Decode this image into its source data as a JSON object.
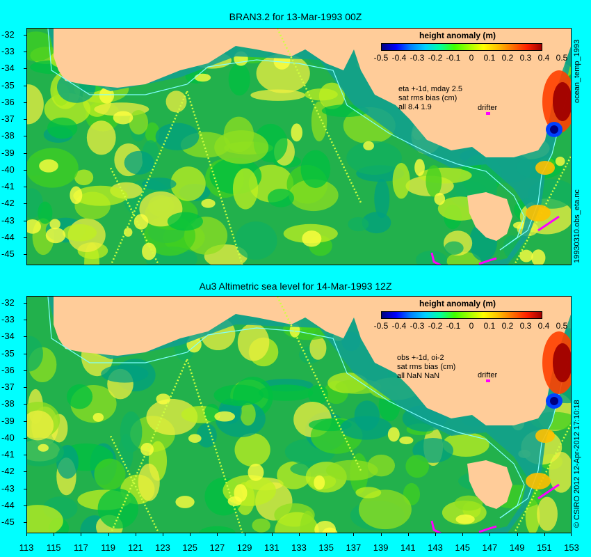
{
  "panels": [
    {
      "title": "BRAN3.2 for 13-Mar-1993 00Z",
      "legend_title": "height anomaly (m)",
      "info_lines": [
        "eta +-1d, mday 2.5",
        "sat rms bias (cm)",
        "all 8.4 1.9"
      ],
      "drifter_label": "drifter",
      "side_top": "ocean_temp_1993",
      "side_bottom": "19930310.obs_eta.nc"
    },
    {
      "title": "Au3 Altimetric sea level  for 14-Mar-1993 12Z",
      "legend_title": "height anomaly (m)",
      "info_lines": [
        "obs +-1d, oi-2",
        "sat rms bias (cm)",
        "all NaN NaN"
      ],
      "drifter_label": "drifter",
      "side_top": "",
      "side_bottom": "© CSIRO 2012  12-Apr-2012 17:10:18"
    }
  ],
  "colorbar_labels": [
    "-0.5",
    "-0.4",
    "-0.3",
    "-0.2",
    "-0.1",
    "0",
    "0.1",
    "0.2",
    "0.3",
    "0.4",
    "0.5"
  ],
  "y_labels": [
    "-32",
    "-33",
    "-34",
    "-35",
    "-36",
    "-37",
    "-38",
    "-39",
    "-40",
    "-41",
    "-42",
    "-43",
    "-44",
    "-45"
  ],
  "x_labels": [
    "113",
    "115",
    "117",
    "119",
    "121",
    "123",
    "125",
    "127",
    "129",
    "131",
    "133",
    "135",
    "137",
    "139",
    "141",
    "143",
    "145",
    "147",
    "149",
    "151",
    "153"
  ],
  "colors": {
    "background": "#00ffff",
    "land": "#ffcc99",
    "ocean_base": "#22b14c",
    "drifter": "#ff00ff",
    "contour": "#80ffff"
  }
}
